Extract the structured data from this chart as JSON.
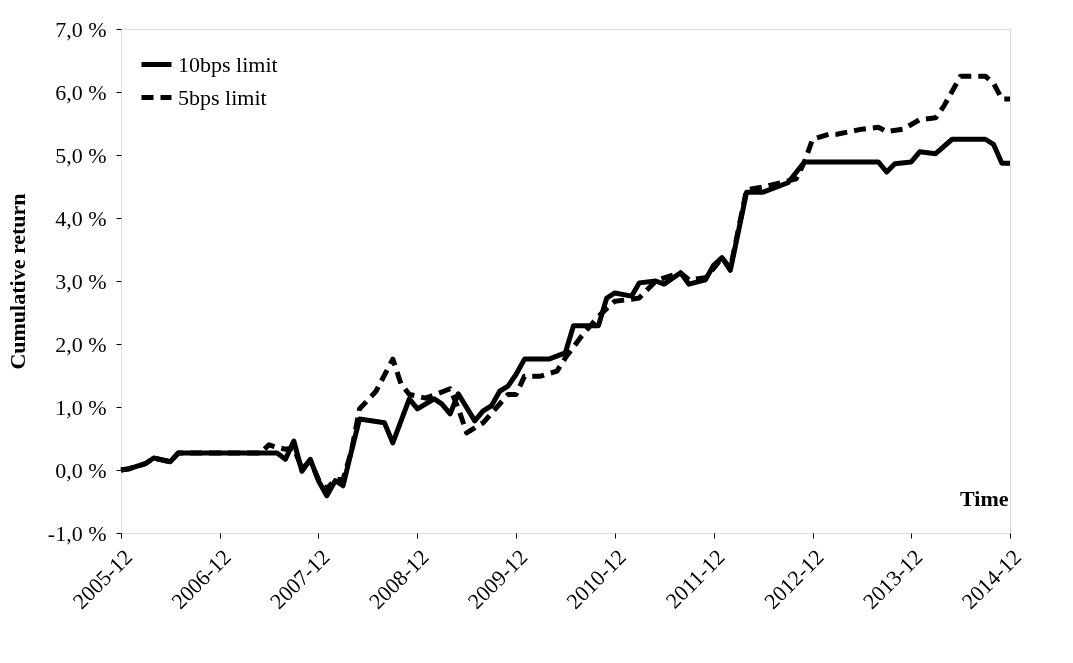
{
  "chart_data": {
    "type": "line",
    "ylabel": "Cumulative return",
    "xlabel": "Time",
    "xlim": [
      "2005-12",
      "2014-12"
    ],
    "xticks": [
      "2005-12",
      "2006-12",
      "2007-12",
      "2008-12",
      "2009-12",
      "2010-12",
      "2011-12",
      "2012-12",
      "2013-12",
      "2014-12"
    ],
    "ylim": [
      -1,
      7
    ],
    "yticks": [
      {
        "value": -1,
        "label": "-1,0 %"
      },
      {
        "value": 0,
        "label": "0,0 %"
      },
      {
        "value": 1,
        "label": "1,0 %"
      },
      {
        "value": 2,
        "label": "2,0 %"
      },
      {
        "value": 3,
        "label": "3,0 %"
      },
      {
        "value": 4,
        "label": "4,0 %"
      },
      {
        "value": 5,
        "label": "5,0 %"
      },
      {
        "value": 6,
        "label": "6,0 %"
      },
      {
        "value": 7,
        "label": "7,0 %"
      }
    ],
    "grid": false,
    "legend": "top left",
    "marker": "none",
    "series": [
      {
        "name": "10bps limit",
        "color": "#000000",
        "line_style": "solid",
        "x": [
          "2005-12",
          "2006-01",
          "2006-03",
          "2006-04",
          "2006-06",
          "2006-07",
          "2007-07",
          "2007-08",
          "2007-09",
          "2007-10",
          "2007-11",
          "2007-12",
          "2008-01",
          "2008-02",
          "2008-03",
          "2008-04",
          "2008-05",
          "2008-08",
          "2008-09",
          "2008-11",
          "2008-12",
          "2009-02",
          "2009-03",
          "2009-04",
          "2009-05",
          "2009-07",
          "2009-08",
          "2009-09",
          "2009-10",
          "2009-11",
          "2009-12",
          "2010-01",
          "2010-04",
          "2010-06",
          "2010-07",
          "2010-10",
          "2010-11",
          "2010-12",
          "2011-02",
          "2011-03",
          "2011-05",
          "2011-06",
          "2011-08",
          "2011-09",
          "2011-11",
          "2011-12",
          "2012-01",
          "2012-02",
          "2012-04",
          "2012-06",
          "2012-09",
          "2012-11",
          "2013-08",
          "2013-09",
          "2013-10",
          "2013-12",
          "2014-01",
          "2014-03",
          "2014-05",
          "2014-09",
          "2014-10",
          "2014-11",
          "2014-12"
        ],
        "values": [
          0.0,
          0.02,
          0.1,
          0.19,
          0.13,
          0.27,
          0.27,
          0.17,
          0.46,
          -0.02,
          0.17,
          -0.17,
          -0.41,
          -0.17,
          -0.25,
          0.3,
          0.81,
          0.75,
          0.43,
          1.13,
          0.97,
          1.13,
          1.05,
          0.89,
          1.21,
          0.78,
          0.94,
          1.02,
          1.25,
          1.33,
          1.52,
          1.76,
          1.76,
          1.86,
          2.29,
          2.29,
          2.73,
          2.81,
          2.76,
          2.97,
          3.0,
          2.95,
          3.13,
          2.95,
          3.02,
          3.25,
          3.37,
          3.17,
          4.41,
          4.41,
          4.56,
          4.89,
          4.89,
          4.73,
          4.86,
          4.89,
          5.05,
          5.02,
          5.25,
          5.25,
          5.17,
          4.87,
          4.87
        ]
      },
      {
        "name": "5bps limit",
        "color": "#000000",
        "line_style": "dashed",
        "x": [
          "2005-12",
          "2006-01",
          "2006-03",
          "2006-04",
          "2006-06",
          "2006-07",
          "2007-05",
          "2007-06",
          "2007-07",
          "2007-08",
          "2007-09",
          "2007-10",
          "2007-11",
          "2007-12",
          "2008-01",
          "2008-02",
          "2008-03",
          "2008-04",
          "2008-05",
          "2008-07",
          "2008-09",
          "2008-10",
          "2008-11",
          "2009-01",
          "2009-04",
          "2009-05",
          "2009-06",
          "2009-08",
          "2009-09",
          "2009-11",
          "2009-12",
          "2010-01",
          "2010-03",
          "2010-05",
          "2010-06",
          "2010-08",
          "2010-10",
          "2010-12",
          "2011-02",
          "2011-03",
          "2011-05",
          "2011-06",
          "2011-08",
          "2011-09",
          "2011-11",
          "2011-12",
          "2012-01",
          "2012-02",
          "2012-04",
          "2012-06",
          "2012-10",
          "2012-11",
          "2012-12",
          "2013-02",
          "2013-03",
          "2013-06",
          "2013-08",
          "2013-09",
          "2013-11",
          "2014-01",
          "2014-03",
          "2014-04",
          "2014-06",
          "2014-09",
          "2014-10",
          "2014-11",
          "2014-12"
        ],
        "values": [
          0.0,
          0.02,
          0.1,
          0.19,
          0.13,
          0.27,
          0.27,
          0.4,
          0.36,
          0.33,
          0.35,
          0.02,
          0.15,
          -0.15,
          -0.3,
          -0.15,
          -0.15,
          0.3,
          0.97,
          1.25,
          1.76,
          1.37,
          1.2,
          1.14,
          1.29,
          0.98,
          0.59,
          0.75,
          0.9,
          1.2,
          1.2,
          1.49,
          1.49,
          1.57,
          1.78,
          2.13,
          2.44,
          2.68,
          2.71,
          2.73,
          3.0,
          3.05,
          3.13,
          3.02,
          3.05,
          3.2,
          3.37,
          3.2,
          4.45,
          4.49,
          4.62,
          4.89,
          5.25,
          5.33,
          5.33,
          5.41,
          5.44,
          5.37,
          5.41,
          5.56,
          5.59,
          5.78,
          6.25,
          6.25,
          6.14,
          5.89,
          5.89
        ]
      }
    ]
  }
}
